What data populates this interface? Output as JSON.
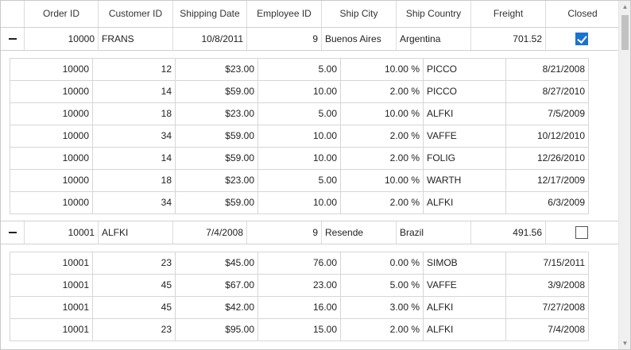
{
  "columns": [
    "Order ID",
    "Customer ID",
    "Shipping Date",
    "Employee ID",
    "Ship City",
    "Ship Country",
    "Freight",
    "Closed"
  ],
  "groups": [
    {
      "order_id": "10000",
      "customer_id": "FRANS",
      "shipping_date": "10/8/2011",
      "employee_id": "9",
      "ship_city": "Buenos Aires",
      "ship_country": "Argentina",
      "freight": "701.52",
      "closed": true,
      "details": [
        [
          "10000",
          "12",
          "$23.00",
          "5.00",
          "10.00 %",
          "PICCO",
          "8/21/2008"
        ],
        [
          "10000",
          "14",
          "$59.00",
          "10.00",
          "2.00 %",
          "PICCO",
          "8/27/2010"
        ],
        [
          "10000",
          "18",
          "$23.00",
          "5.00",
          "10.00 %",
          "ALFKI",
          "7/5/2009"
        ],
        [
          "10000",
          "34",
          "$59.00",
          "10.00",
          "2.00 %",
          "VAFFE",
          "10/12/2010"
        ],
        [
          "10000",
          "14",
          "$59.00",
          "10.00",
          "2.00 %",
          "FOLIG",
          "12/26/2010"
        ],
        [
          "10000",
          "18",
          "$23.00",
          "5.00",
          "10.00 %",
          "WARTH",
          "12/17/2009"
        ],
        [
          "10000",
          "34",
          "$59.00",
          "10.00",
          "2.00 %",
          "ALFKI",
          "6/3/2009"
        ]
      ]
    },
    {
      "order_id": "10001",
      "customer_id": "ALFKI",
      "shipping_date": "7/4/2008",
      "employee_id": "9",
      "ship_city": "Resende",
      "ship_country": "Brazil",
      "freight": "491.56",
      "closed": false,
      "details": [
        [
          "10001",
          "23",
          "$45.00",
          "76.00",
          "0.00 %",
          "SIMOB",
          "7/15/2011"
        ],
        [
          "10001",
          "45",
          "$67.00",
          "23.00",
          "5.00 %",
          "VAFFE",
          "3/9/2008"
        ],
        [
          "10001",
          "45",
          "$42.00",
          "16.00",
          "3.00 %",
          "ALFKI",
          "7/27/2008"
        ],
        [
          "10001",
          "23",
          "$95.00",
          "15.00",
          "2.00 %",
          "ALFKI",
          "7/4/2008"
        ]
      ]
    }
  ],
  "colors": {
    "check_accent": "#1a73d1",
    "grid_line": "#d6d6d6"
  },
  "icons": {
    "expander": "minus-icon",
    "checkbox_checked": "checkmark-icon",
    "scroll_up": "chevron-up-icon",
    "scroll_down": "chevron-down-icon"
  }
}
